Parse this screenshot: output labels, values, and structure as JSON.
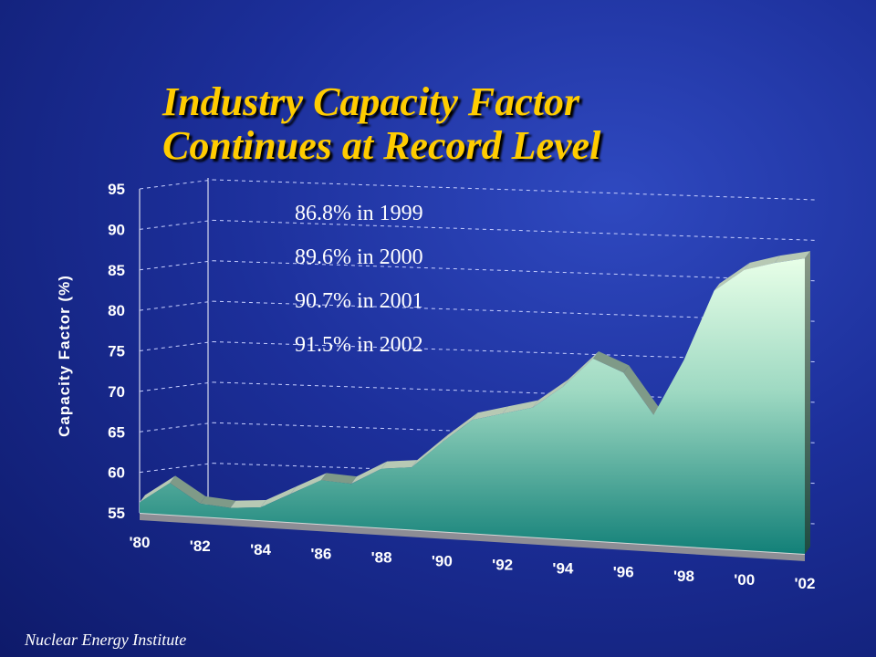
{
  "title_lines": [
    "Industry Capacity Factor",
    "Continues at Record Level"
  ],
  "annotations": [
    "86.8% in 1999",
    "89.6% in 2000",
    "90.7% in 2001",
    "91.5% in 2002"
  ],
  "footer": "Nuclear Energy Institute",
  "colors": {
    "title": "#ffcc00",
    "area_top": "#e8ffe8",
    "area_bottom": "#128078"
  },
  "chart_data": {
    "type": "area",
    "title": "",
    "xlabel": "",
    "ylabel": "Capacity Factor (%)",
    "x": [
      1980,
      1981,
      1982,
      1983,
      1984,
      1985,
      1986,
      1987,
      1988,
      1989,
      1990,
      1991,
      1992,
      1993,
      1994,
      1995,
      1996,
      1997,
      1998,
      1999,
      2000,
      2001,
      2002
    ],
    "values": [
      56.3,
      58.9,
      56.6,
      56.3,
      56.6,
      58.5,
      60.4,
      60.2,
      62.3,
      62.7,
      66.0,
      69.0,
      70.0,
      71.0,
      73.8,
      77.5,
      76.0,
      71.0,
      78.0,
      86.8,
      89.6,
      90.7,
      91.5
    ],
    "x_tick_labels": [
      "'80",
      "'82",
      "'84",
      "'86",
      "'88",
      "'90",
      "'92",
      "'94",
      "'96",
      "'98",
      "'00",
      "'02"
    ],
    "y_ticks": [
      55,
      60,
      65,
      70,
      75,
      80,
      85,
      90,
      95
    ],
    "ylim": [
      55,
      95
    ],
    "grid": true,
    "three_d": true
  }
}
